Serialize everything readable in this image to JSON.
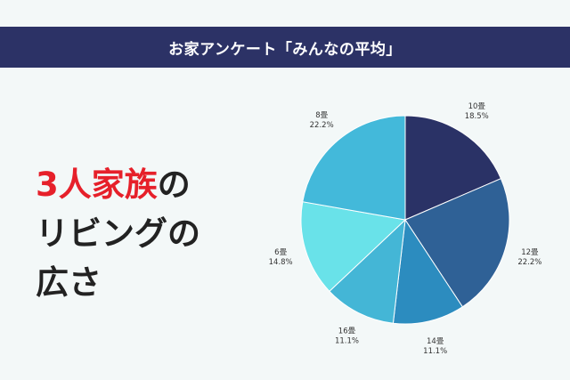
{
  "header": {
    "title": "お家アンケート「みんなの平均」"
  },
  "headline": {
    "line1_accent": "3人家族",
    "line1_rest": "の",
    "line2": "リビングの",
    "line3": "広さ"
  },
  "colors": {
    "banner": "#2c3266",
    "accent": "#e6202a"
  },
  "chart_data": {
    "type": "pie",
    "categories": [
      "10畳",
      "12畳",
      "14畳",
      "16畳",
      "6畳",
      "8畳"
    ],
    "values": [
      18.5,
      22.2,
      11.1,
      11.1,
      14.8,
      22.2
    ],
    "value_labels": [
      "18.5%",
      "22.2%",
      "11.1%",
      "11.1%",
      "14.8%",
      "22.2%"
    ],
    "colors": [
      "#2a3266",
      "#2f6196",
      "#2c8cbf",
      "#44b6d6",
      "#69e2e9",
      "#43b9da"
    ],
    "start": "12 o'clock, clockwise"
  }
}
